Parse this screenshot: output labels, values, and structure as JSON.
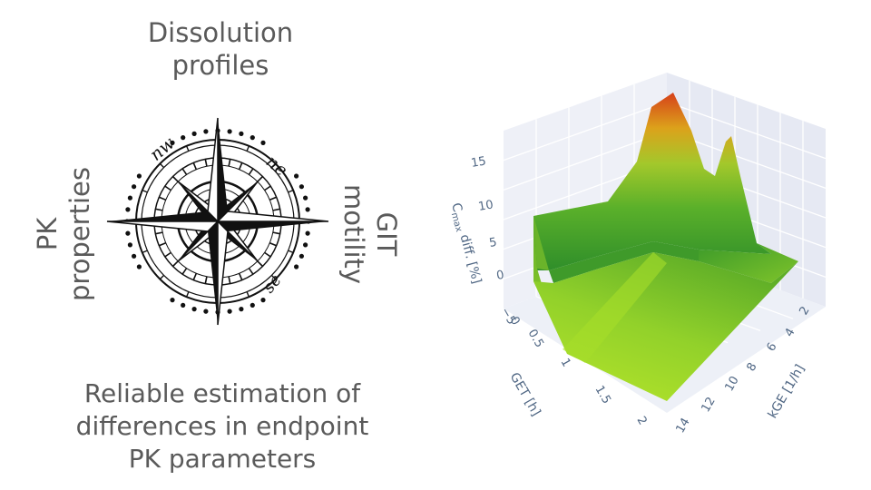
{
  "labels": {
    "top_line1": "Dissolution",
    "top_line2": "profiles",
    "left_line1": "PK",
    "left_line2": "properties",
    "right_line1": "GIT",
    "right_line2": "motility",
    "bottom_line1": "Reliable estimation of",
    "bottom_line2": "differences in endpoint",
    "bottom_line3": "PK parameters"
  },
  "compass": {
    "icon": "compass-rose-icon",
    "ne": "ne",
    "nw": "nw",
    "se": "se",
    "sw": "sw"
  },
  "chart_data": {
    "type": "surface3d",
    "x_axis": {
      "title": "GET [h]",
      "ticks": [
        "0",
        "0.5",
        "1",
        "1.5",
        "2"
      ],
      "range": [
        0,
        2
      ]
    },
    "y_axis": {
      "title": "kGE [1/h]",
      "ticks": [
        "2",
        "4",
        "6",
        "8",
        "10",
        "12",
        "14"
      ],
      "range": [
        2,
        14
      ]
    },
    "z_axis": {
      "title_main": "C",
      "title_sub": "max",
      "title_rest": " diff. [%]",
      "ticks": [
        "−5",
        "0",
        "5",
        "10",
        "15"
      ],
      "range": [
        -5,
        18
      ]
    },
    "colorscale": [
      "#b7e62a",
      "#7dc42a",
      "#2e8f2a",
      "#e0a01a",
      "#d8401a"
    ],
    "description_peak_max": 18
  }
}
